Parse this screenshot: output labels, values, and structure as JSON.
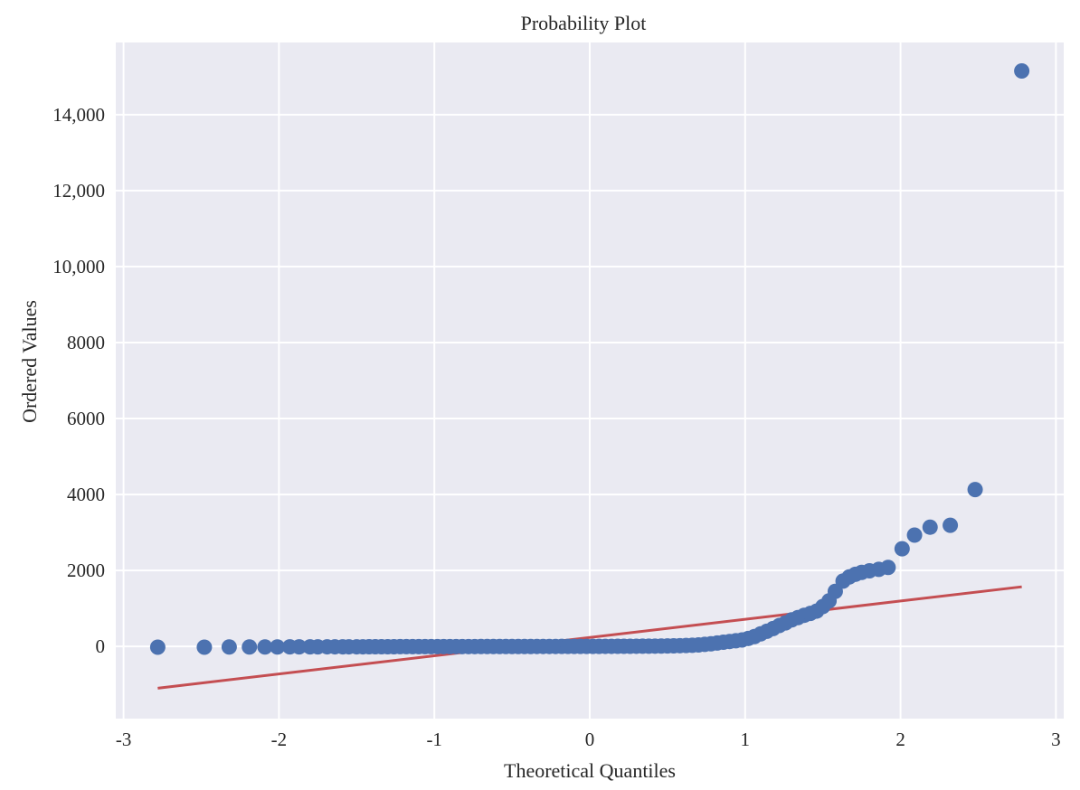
{
  "chart_data": {
    "type": "scatter",
    "title": "Probability Plot",
    "xlabel": "Theoretical Quantiles",
    "ylabel": "Ordered Values",
    "xlim": [
      -3.05,
      3.05
    ],
    "ylim": [
      -1900,
      15900
    ],
    "grid": true,
    "xticks": [
      -3,
      -2,
      -1,
      0,
      1,
      2,
      3
    ],
    "xtick_labels": [
      "-3",
      "-2",
      "-1",
      "0",
      "1",
      "2",
      "3"
    ],
    "yticks": [
      0,
      2000,
      4000,
      6000,
      8000,
      10000,
      12000,
      14000
    ],
    "ytick_labels": [
      "0",
      "2000",
      "4000",
      "6000",
      "8000",
      "10,000",
      "12,000",
      "14,000"
    ],
    "colors": {
      "background": "#eaeaf2",
      "grid": "#ffffff",
      "points": "#4c72b0",
      "fit_line": "#c44e52"
    },
    "series": [
      {
        "kind": "points",
        "x": [
          -2.78,
          -2.48,
          -2.32,
          -2.19,
          -2.09,
          -2.01,
          -1.93,
          -1.87,
          -1.8,
          -1.75,
          -1.69,
          -1.64,
          -1.59,
          -1.55,
          -1.5,
          -1.46,
          -1.42,
          -1.38,
          -1.34,
          -1.3,
          -1.26,
          -1.22,
          -1.18,
          -1.14,
          -1.1,
          -1.06,
          -1.02,
          -0.98,
          -0.94,
          -0.9,
          -0.86,
          -0.82,
          -0.78,
          -0.74,
          -0.7,
          -0.66,
          -0.62,
          -0.58,
          -0.54,
          -0.5,
          -0.46,
          -0.42,
          -0.38,
          -0.34,
          -0.3,
          -0.26,
          -0.22,
          -0.18,
          -0.14,
          -0.1,
          -0.06,
          -0.02,
          0.02,
          0.06,
          0.1,
          0.14,
          0.18,
          0.22,
          0.26,
          0.3,
          0.34,
          0.38,
          0.42,
          0.46,
          0.5,
          0.54,
          0.58,
          0.62,
          0.66,
          0.7,
          0.74,
          0.78,
          0.82,
          0.86,
          0.9,
          0.94,
          0.98,
          1.02,
          1.06,
          1.1,
          1.14,
          1.18,
          1.22,
          1.26,
          1.3,
          1.34,
          1.38,
          1.42,
          1.46,
          1.5,
          1.54,
          1.58,
          1.63,
          1.67,
          1.71,
          1.75,
          1.8,
          1.86,
          1.92,
          2.01,
          2.09,
          2.19,
          2.32,
          2.48,
          2.78
        ],
        "y": [
          -20,
          -20,
          -15,
          -15,
          -15,
          -15,
          -12,
          -12,
          -12,
          -12,
          -10,
          -10,
          -10,
          -10,
          -10,
          -10,
          -8,
          -8,
          -8,
          -8,
          -8,
          -6,
          -6,
          -6,
          -6,
          -6,
          -5,
          -5,
          -5,
          -5,
          -4,
          -4,
          -4,
          -4,
          -3,
          -3,
          -3,
          -3,
          -2,
          -2,
          -2,
          -2,
          -2,
          -1,
          -1,
          -1,
          -1,
          0,
          0,
          0,
          0,
          0,
          1,
          1,
          2,
          2,
          3,
          3,
          4,
          5,
          6,
          7,
          8,
          10,
          12,
          15,
          20,
          25,
          30,
          40,
          55,
          70,
          90,
          110,
          130,
          150,
          170,
          210,
          260,
          330,
          400,
          470,
          550,
          620,
          700,
          760,
          820,
          870,
          930,
          1050,
          1200,
          1450,
          1720,
          1830,
          1900,
          1950,
          1990,
          2030,
          2080,
          2570,
          2930,
          3140,
          3190,
          4130,
          15150
        ]
      },
      {
        "kind": "line",
        "x": [
          -2.78,
          2.78
        ],
        "y": [
          -1100,
          1570
        ]
      }
    ]
  }
}
